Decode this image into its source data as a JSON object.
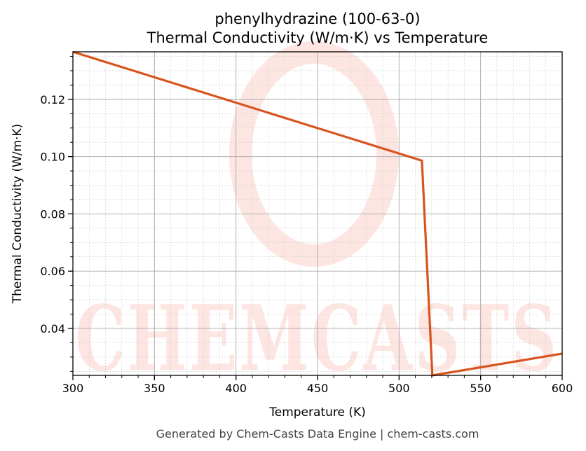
{
  "chart_data": {
    "type": "line",
    "title": "phenylhydrazine (100-63-0)",
    "subtitle": "Thermal Conductivity (W/m·K) vs Temperature",
    "xlabel": "Temperature (K)",
    "ylabel": "Thermal Conductivity (W/m·K)",
    "xlim": [
      300,
      600
    ],
    "ylim": [
      0.0236,
      0.1366
    ],
    "xticks": [
      300,
      350,
      400,
      450,
      500,
      550,
      600
    ],
    "xtick_labels": [
      "300",
      "350",
      "400",
      "450",
      "500",
      "550",
      "600"
    ],
    "yticks": [
      0.04,
      0.06,
      0.08,
      0.1,
      0.12
    ],
    "ytick_labels": [
      "0.04",
      "0.06",
      "0.08",
      "0.10",
      "0.12"
    ],
    "grid": true,
    "series": [
      {
        "color": "#d9531e",
        "x": [
          300,
          514,
          520.4,
          600
        ],
        "y": [
          0.1366,
          0.0986,
          0.0236,
          0.0312
        ]
      }
    ]
  },
  "watermark": "CHEMCASTS",
  "footer": "Generated by Chem-Casts Data Engine | chem-casts.com"
}
